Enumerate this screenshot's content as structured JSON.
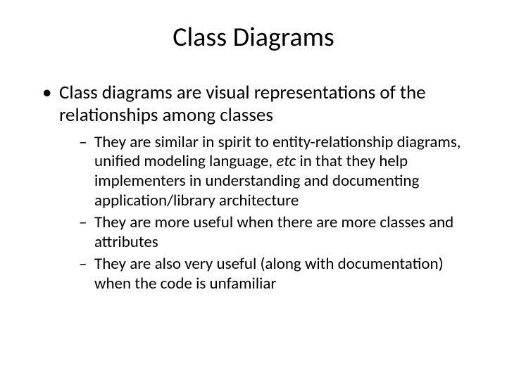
{
  "title": "Class Diagrams",
  "bullet": {
    "text": "Class diagrams are visual representations of the relationships among classes",
    "subitems": [
      {
        "prefix": "They are similar in spirit to entity-relationship diagrams, unified modeling language, ",
        "em": "etc",
        "suffix": " in that they help implementers in understanding and documenting application/library architecture"
      },
      {
        "prefix": "They are more useful when there are more classes and attributes",
        "em": "",
        "suffix": ""
      },
      {
        "prefix": "They are also very useful (along with documentation) when the code is unfamiliar",
        "em": "",
        "suffix": ""
      }
    ]
  },
  "styling": {
    "background_color": "#ffffff",
    "text_color": "#000000",
    "title_fontsize": 38,
    "bullet_fontsize": 27,
    "sub_fontsize": 23,
    "font_family": "Calibri"
  }
}
